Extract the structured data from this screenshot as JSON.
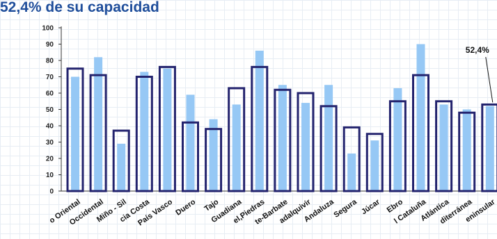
{
  "chart_data": {
    "type": "bar",
    "title": "52,4% de su capacidad",
    "categories": [
      "Cantábrico Oriental",
      "Cantábrico Occidental",
      "Miño - Sil",
      "Galicia Costa",
      "País Vasco",
      "Duero",
      "Tajo",
      "Guadiana",
      "Tinto, Odiel, Piedras",
      "Guadalete-Barbate",
      "Guadalquivir",
      "Cuenca Med. Andaluza",
      "Segura",
      "Júcar",
      "Ebro",
      "Cuencas Int. Cataluña",
      "Total Vert. Atlántica",
      "Total Vert. Mediterránea",
      "Total Peninsular"
    ],
    "category_labels": [
      "o Oriental",
      "Occidental",
      "Miño - Sil",
      "cia Costa",
      "País Vasco",
      "Duero",
      "Tajo",
      "Guadiana",
      "el,Piedras",
      "te-Barbate",
      "adalquivir",
      "Andaluza",
      "Segura",
      "Júcar",
      "Ebro",
      "l Cataluña",
      "Atlántica",
      "diterránea",
      "eninsular"
    ],
    "series": [
      {
        "values": [
          75,
          71,
          37,
          70,
          76,
          42,
          38,
          63,
          76,
          62,
          60,
          52,
          39,
          35,
          55,
          71,
          55,
          48,
          53
        ],
        "style": "outline",
        "color": "#23236e"
      },
      {
        "values": [
          70,
          82,
          29,
          73,
          75,
          59,
          44,
          53,
          86,
          65,
          54,
          65,
          23,
          31,
          63,
          90,
          53,
          50,
          52
        ],
        "style": "filled",
        "color": "#96c8f5"
      }
    ],
    "yticks": [
      0,
      10,
      20,
      30,
      40,
      50,
      60,
      70,
      80,
      90,
      100
    ],
    "ylim": [
      0,
      100
    ],
    "annotation": {
      "text": "52,4%",
      "category": "Total Peninsular"
    }
  }
}
